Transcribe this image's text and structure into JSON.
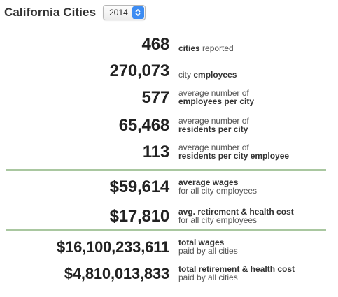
{
  "header": {
    "title": "California Cities",
    "year": "2014"
  },
  "stats": [
    {
      "value": "468",
      "pre": "",
      "bold": "cities",
      "post": " reported",
      "line2": "",
      "line2_bold": false
    },
    {
      "value": "270,073",
      "pre": "city ",
      "bold": "employees",
      "post": "",
      "line2": "",
      "line2_bold": false
    },
    {
      "value": "577",
      "pre": "average number of",
      "bold": "",
      "post": "",
      "line2": "employees per city",
      "line2_bold": true
    },
    {
      "value": "65,468",
      "pre": "average number of",
      "bold": "",
      "post": "",
      "line2": "residents per city",
      "line2_bold": true
    },
    {
      "value": "113",
      "pre": "average number of",
      "bold": "",
      "post": "",
      "line2": "residents per city employee",
      "line2_bold": true
    },
    {
      "value": "$59,614",
      "pre": "",
      "bold": "average wages",
      "post": "",
      "line2": "for all city employees",
      "line2_bold": false
    },
    {
      "value": "$17,810",
      "pre": "",
      "bold": "avg. retirement & health cost",
      "post": "",
      "line2": "for all city employees",
      "line2_bold": false
    },
    {
      "value": "$16,100,233,611",
      "pre": "",
      "bold": "total wages",
      "post": "",
      "line2": "paid by all cities",
      "line2_bold": false
    },
    {
      "value": "$4,810,013,833",
      "pre": "",
      "bold": "total retirement & health cost",
      "post": "",
      "line2": "paid by all cities",
      "line2_bold": false
    }
  ]
}
